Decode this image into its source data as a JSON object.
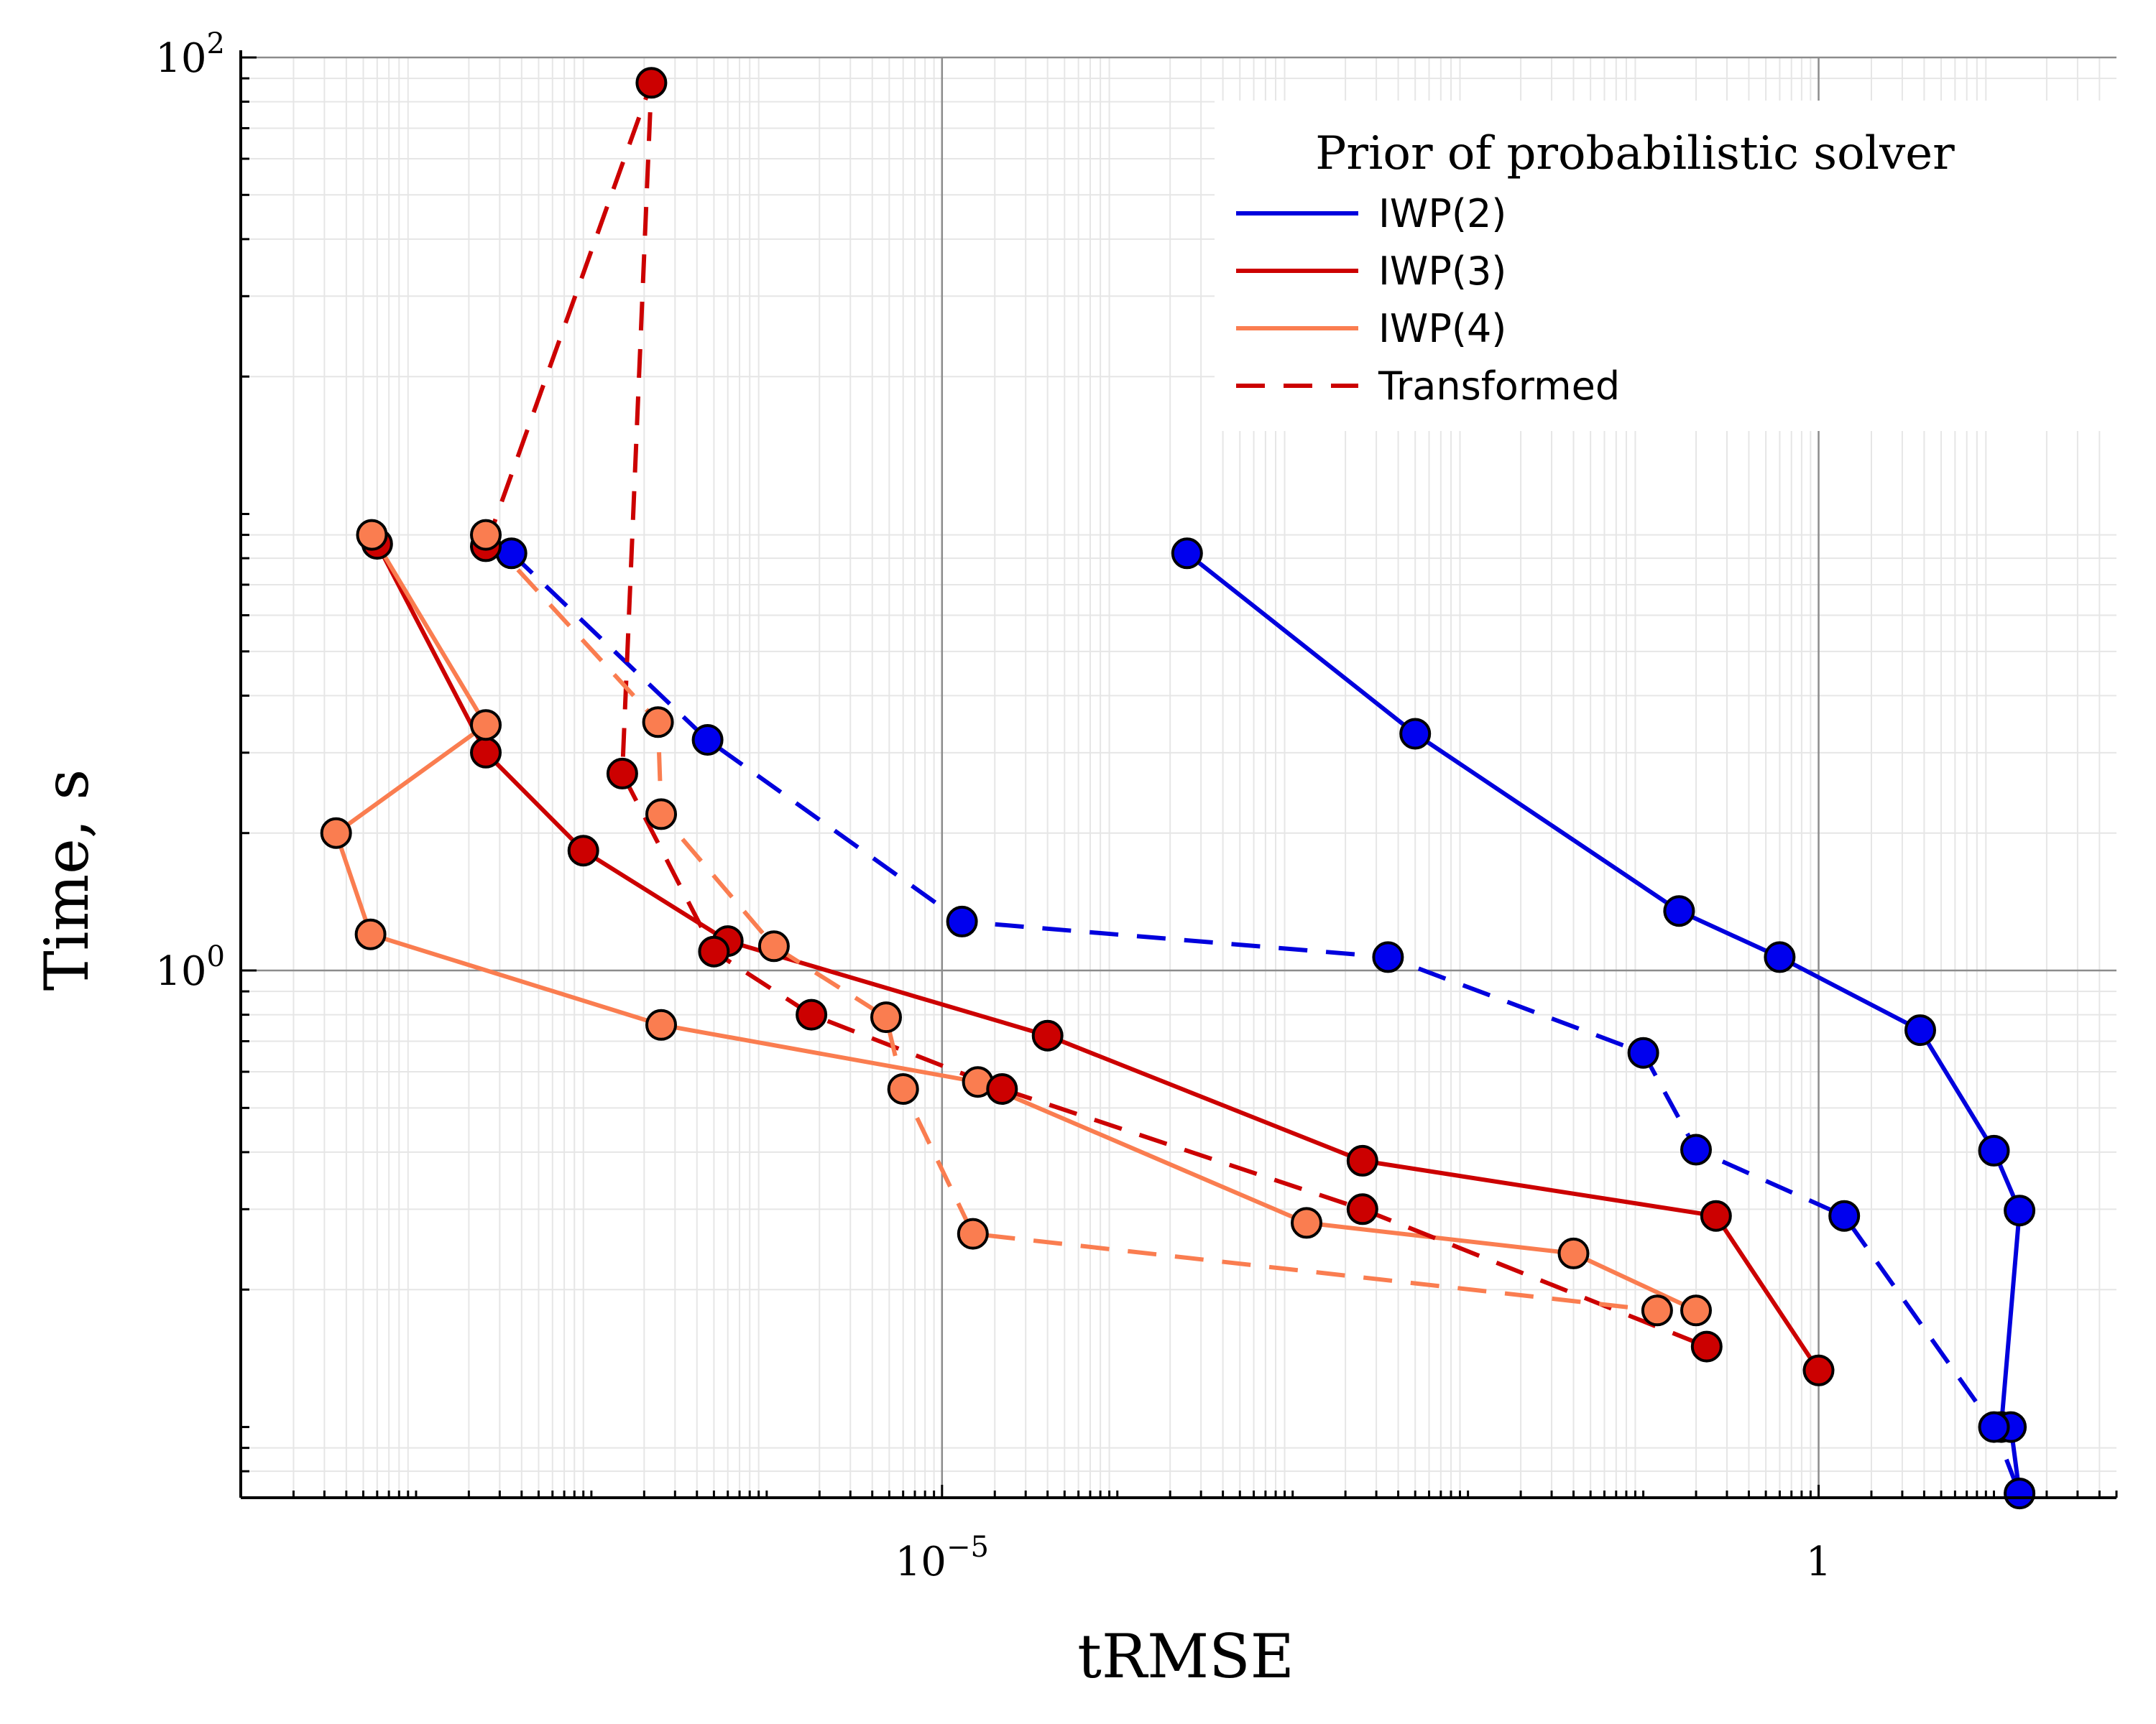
{
  "chart_data": {
    "type": "scatter",
    "xlabel": "tRMSE",
    "ylabel": "Time, s",
    "xscale": "log10",
    "yscale": "log10",
    "xlim": [
      1e-09,
      50
    ],
    "ylim": [
      0.07,
      100
    ],
    "grid": true,
    "xticks": [
      {
        "value": 1e-05,
        "base": "10",
        "exp": "−5"
      },
      {
        "value": 1,
        "base": "1",
        "exp": ""
      }
    ],
    "yticks": [
      {
        "value": 1,
        "base": "10",
        "exp": "0"
      },
      {
        "value": 100,
        "base": "10",
        "exp": "2"
      }
    ],
    "legend": {
      "title": "Prior of probabilistic solver",
      "position": "top-right",
      "entries": [
        {
          "label": "IWP(2)",
          "color": "#0000dd",
          "dash": "solid"
        },
        {
          "label": "IWP(3)",
          "color": "#cc0000",
          "dash": "solid"
        },
        {
          "label": "IWP(4)",
          "color": "#fa7d50",
          "dash": "solid"
        },
        {
          "label": "Transformed",
          "color": "#cc0000",
          "dash": "dashed"
        }
      ]
    },
    "series": [
      {
        "name": "IWP(2)",
        "color": "#0000dd",
        "marker_color": "#0000ee",
        "dash": "solid",
        "points": [
          [
            0.00025,
            8.2
          ],
          [
            0.005,
            3.3
          ],
          [
            0.16,
            1.35
          ],
          [
            0.6,
            1.07
          ],
          [
            3.8,
            0.74
          ],
          [
            10,
            0.403
          ],
          [
            14,
            0.298
          ],
          [
            11,
            0.1
          ],
          [
            12.5,
            0.1
          ],
          [
            14,
            0.0715
          ]
        ]
      },
      {
        "name": "IWP(3)",
        "color": "#cc0000",
        "marker_color": "#cc0000",
        "dash": "solid",
        "points": [
          [
            6e-09,
            8.6
          ],
          [
            2.5e-08,
            3.0
          ],
          [
            9e-08,
            1.83
          ],
          [
            6e-07,
            1.16
          ],
          [
            4e-05,
            0.72
          ],
          [
            0.0025,
            0.383
          ],
          [
            0.26,
            0.29
          ],
          [
            1.0,
            0.133
          ]
        ]
      },
      {
        "name": "IWP(4)",
        "color": "#fa7d50",
        "marker_color": "#fa7d50",
        "dash": "solid",
        "points": [
          [
            5.6e-09,
            9.0
          ],
          [
            2.5e-08,
            3.45
          ],
          [
            3.5e-09,
            2.0
          ],
          [
            5.5e-09,
            1.2
          ],
          [
            2.5e-07,
            0.76
          ],
          [
            1.6e-05,
            0.57
          ],
          [
            0.0012,
            0.28
          ],
          [
            0.04,
            0.24
          ],
          [
            0.2,
            0.18
          ]
        ]
      },
      {
        "name": "IWP(2)",
        "color": "#0000dd",
        "marker_color": "#0000ee",
        "dash": "dashed",
        "points": [
          [
            3.5e-08,
            8.2
          ],
          [
            4.6e-07,
            3.2
          ],
          [
            1.3e-05,
            1.28
          ],
          [
            0.0035,
            1.07
          ],
          [
            0.1,
            0.66
          ],
          [
            0.2,
            0.405
          ],
          [
            1.4,
            0.29
          ],
          [
            10,
            0.1
          ],
          [
            14,
            0.0715
          ]
        ]
      },
      {
        "name": "IWP(3)",
        "color": "#cc0000",
        "marker_color": "#cc0000",
        "dash": "dashed",
        "points": [
          [
            2.5e-08,
            8.5
          ],
          [
            2.2e-07,
            88
          ],
          [
            1.5e-07,
            2.7
          ],
          [
            5e-07,
            1.1
          ],
          [
            1.8e-06,
            0.8
          ],
          [
            2.2e-05,
            0.55
          ],
          [
            0.0025,
            0.3
          ],
          [
            0.23,
            0.15
          ]
        ]
      },
      {
        "name": "IWP(4)",
        "color": "#fa7d50",
        "marker_color": "#fa7d50",
        "dash": "dashed",
        "points": [
          [
            2.5e-08,
            9.0
          ],
          [
            2.4e-07,
            3.5
          ],
          [
            2.5e-07,
            2.2
          ],
          [
            1.1e-06,
            1.13
          ],
          [
            4.8e-06,
            0.79
          ],
          [
            6e-06,
            0.55
          ],
          [
            1.5e-05,
            0.265
          ],
          [
            0.12,
            0.18
          ]
        ]
      }
    ]
  }
}
